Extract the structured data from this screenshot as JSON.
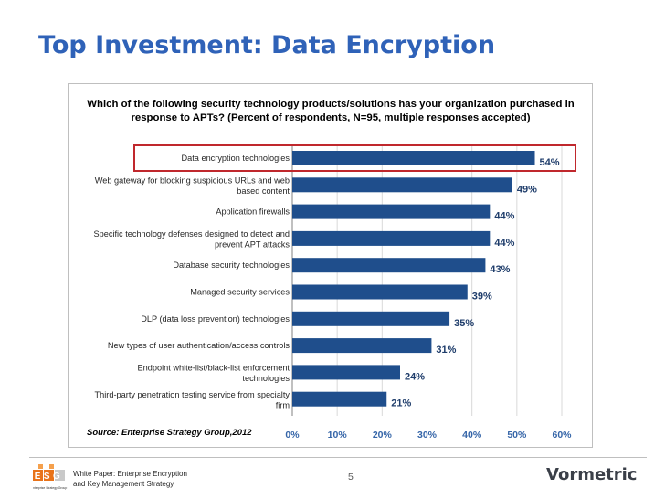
{
  "slide": {
    "title": "Top Investment: Data Encryption",
    "question": "Which of the following security technology products/solutions has your organization purchased in response to APTs? (Percent of respondents, N=95, multiple responses accepted)",
    "source": "Source: Enterprise Strategy Group,2012",
    "page_number": "5",
    "footer_text": [
      "White Paper: Enterprise Encryption",
      "and Key Management Strategy"
    ],
    "esg_logo_text": "ESG",
    "esg_logo_sub": "Enterprise Strategy Group",
    "vormetric_logo": "Vormetric"
  },
  "chart_data": {
    "type": "bar",
    "orientation": "horizontal",
    "categories": [
      "Data encryption technologies",
      "Web gateway for blocking suspicious URLs and web based content",
      "Application firewalls",
      "Specific technology defenses designed to detect and prevent APT attacks",
      "Database security technologies",
      "Managed security services",
      "DLP (data loss prevention) technologies",
      "New types of user authentication/access controls",
      "Endpoint white-list/black-list enforcement technologies",
      "Third-party penetration testing service from specialty firm"
    ],
    "category_lines": [
      [
        "Data encryption technologies"
      ],
      [
        "Web gateway for blocking suspicious URLs and web",
        "based content"
      ],
      [
        "Application firewalls"
      ],
      [
        "Specific technology defenses designed to detect and",
        "prevent APT attacks"
      ],
      [
        "Database security technologies"
      ],
      [
        "Managed security services"
      ],
      [
        "DLP (data loss prevention) technologies"
      ],
      [
        "New types of user authentication/access controls"
      ],
      [
        "Endpoint white-list/black-list enforcement",
        "technologies"
      ],
      [
        "Third-party penetration testing service from specialty",
        "firm"
      ]
    ],
    "values": [
      54,
      49,
      44,
      44,
      43,
      39,
      35,
      31,
      24,
      21
    ],
    "value_labels": [
      "54%",
      "49%",
      "44%",
      "44%",
      "43%",
      "39%",
      "35%",
      "31%",
      "24%",
      "21%"
    ],
    "xlim": [
      0,
      60
    ],
    "ticks": [
      "0%",
      "10%",
      "20%",
      "30%",
      "40%",
      "50%",
      "60%"
    ],
    "tick_values": [
      0,
      10,
      20,
      30,
      40,
      50,
      60
    ],
    "highlighted_index": 0,
    "bar_color": "#1f4e8c",
    "highlight_color": "#c0282d",
    "grid": true
  }
}
